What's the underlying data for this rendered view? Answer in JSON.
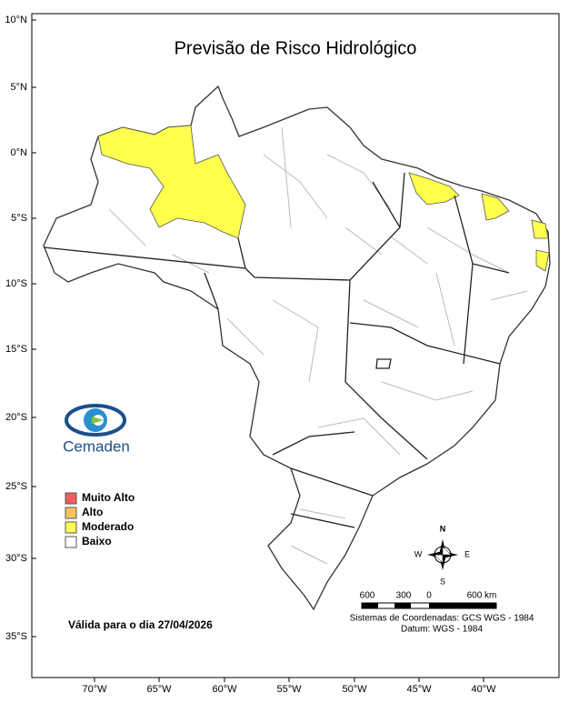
{
  "title": "Previsão de Risco Hidrológico",
  "latitude_labels": [
    "10°N",
    "5°N",
    "0°N",
    "5°S",
    "10°S",
    "15°S",
    "20°S",
    "25°S",
    "30°S",
    "35°S"
  ],
  "longitude_labels": [
    "70°W",
    "65°W",
    "60°W",
    "55°W",
    "50°W",
    "45°W",
    "40°W"
  ],
  "logo": "Cemaden",
  "legend": [
    {
      "label": "Muito Alto",
      "color": "#f25c5c"
    },
    {
      "label": "Alto",
      "color": "#f7c45a"
    },
    {
      "label": "Moderado",
      "color": "#ffff4d"
    },
    {
      "label": "Baixo",
      "color": "#ffffff"
    }
  ],
  "validity": "Válida para o dia 27/04/2026",
  "compass": {
    "north": "N",
    "south": "S",
    "east": "E",
    "west": "W"
  },
  "scale_bar": {
    "labels": [
      "600",
      "300",
      "0",
      "600 km"
    ]
  },
  "coordinate_system": [
    "Sistemas de Coordenadas: GCS WGS - 1984",
    "Datum: WGS - 1984"
  ]
}
